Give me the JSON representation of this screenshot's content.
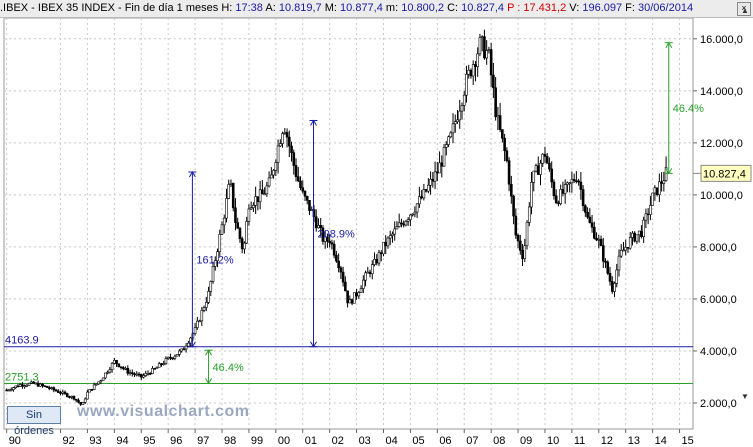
{
  "header": {
    "symbol": ".IBEX - IBEX 35 INDEX - Fin de día 1 meses",
    "time_label": "H:",
    "time_value": "17:38",
    "open_label": "A:",
    "open_value": "10.819,7",
    "high_label": "M:",
    "high_value": "10.877,4",
    "low_label": "m:",
    "low_value": "10.800,2",
    "close_label": "C:",
    "close_value": "10.827,4",
    "p_label": "P :",
    "p_value": "17.431,2",
    "vol_label": "V:",
    "vol_value": "196.097",
    "date_label": "F:",
    "date_value": "30/06/2014",
    "close_button": "×"
  },
  "footer": {
    "orders_button": "Sin órdenes",
    "watermark": "www.visualchart.com",
    "scroll_up": "▲",
    "scroll_down": "▼"
  },
  "colors": {
    "candle": "#000000",
    "blue_line": "#1a1aa6",
    "green_line": "#2aa02a",
    "grid": "#c8c8c8",
    "price_tag_bg": "#ffffc0"
  },
  "chart_data": {
    "type": "line",
    "title": "",
    "xlabel": "",
    "ylabel": "",
    "ylim": [
      1000,
      16800
    ],
    "y_ticks": [
      2000,
      4000,
      6000,
      8000,
      10000,
      12000,
      14000,
      16000
    ],
    "y_tick_labels": [
      "2.000,0",
      "4.000,0",
      "6.000,0",
      "8.000,0",
      "10.000,0",
      "12.000,0",
      "14.000,0",
      "16.000,0"
    ],
    "x_ticks": [
      1990,
      1992,
      1993,
      1994,
      1995,
      1996,
      1997,
      1998,
      1999,
      2000,
      2001,
      2002,
      2003,
      2004,
      2005,
      2006,
      2007,
      2008,
      2009,
      2010,
      2011,
      2012,
      2013,
      2014,
      2015
    ],
    "x_tick_labels": [
      "90",
      "92",
      "93",
      "94",
      "95",
      "96",
      "97",
      "98",
      "99",
      "00",
      "01",
      "02",
      "03",
      "04",
      "05",
      "06",
      "07",
      "08",
      "09",
      "10",
      "11",
      "12",
      "13",
      "14",
      "15"
    ],
    "xlim": [
      1989.9,
      2015.5
    ],
    "grid": true,
    "series": [
      {
        "x": [
          1990.0,
          1990.5,
          1991.0,
          1991.5,
          1992.0,
          1992.5,
          1992.8,
          1993.0,
          1993.5,
          1994.0,
          1994.5,
          1995.0,
          1995.5,
          1996.0,
          1996.5,
          1997.0,
          1997.5,
          1997.8,
          1998.0,
          1998.3,
          1998.5,
          1998.8,
          1999.0,
          1999.5,
          1999.8,
          2000.0,
          2000.3,
          2000.7,
          2001.0,
          2001.4,
          2001.8,
          2002.0,
          2002.4,
          2002.7,
          2003.0,
          2003.3,
          2003.7,
          2004.0,
          2004.5,
          2005.0,
          2005.5,
          2006.0,
          2006.5,
          2007.0,
          2007.3,
          2007.6,
          2007.9,
          2008.2,
          2008.6,
          2008.9,
          2009.2,
          2009.5,
          2010.0,
          2010.4,
          2010.8,
          2011.2,
          2011.6,
          2012.0,
          2012.5,
          2012.8,
          2013.2,
          2013.6,
          2014.0,
          2014.5
        ],
        "values": [
          2500,
          2700,
          2750,
          2600,
          2400,
          2200,
          1900,
          2400,
          2900,
          3600,
          3200,
          3000,
          3300,
          3700,
          4000,
          4800,
          6200,
          7800,
          8800,
          10500,
          9000,
          7800,
          9700,
          10000,
          10500,
          11500,
          12800,
          11000,
          10000,
          9200,
          8200,
          8300,
          7200,
          5800,
          6200,
          6800,
          7400,
          8000,
          8700,
          9300,
          10000,
          10900,
          12200,
          14100,
          15000,
          15800,
          15400,
          13000,
          11200,
          8500,
          7600,
          10500,
          11600,
          9800,
          10200,
          10800,
          9000,
          8200,
          6400,
          7700,
          8300,
          8600,
          9900,
          10827.4
        ]
      }
    ],
    "annotations": [
      {
        "label": "4163.9",
        "type": "hline",
        "y": 4163.9,
        "color": "blue"
      },
      {
        "label": "2751.3",
        "type": "hline",
        "y": 2751.3,
        "color": "green"
      },
      {
        "label": "161.2%",
        "type": "arrow",
        "x": 1996.9,
        "y_from": 4163.9,
        "y_to": 10880,
        "color": "blue"
      },
      {
        "label": "208.9%",
        "type": "arrow",
        "x": 2001.4,
        "y_from": 4163.9,
        "y_to": 12860,
        "color": "blue"
      },
      {
        "label": "46.4%",
        "type": "arrow",
        "x": 1997.5,
        "y_from": 2751.3,
        "y_to": 4030,
        "color": "green"
      },
      {
        "label": "46.4%",
        "type": "arrow",
        "x": 2014.6,
        "y_from": 10827.4,
        "y_to": 15850,
        "color": "green"
      }
    ],
    "last_price_label": "10.827,4"
  }
}
